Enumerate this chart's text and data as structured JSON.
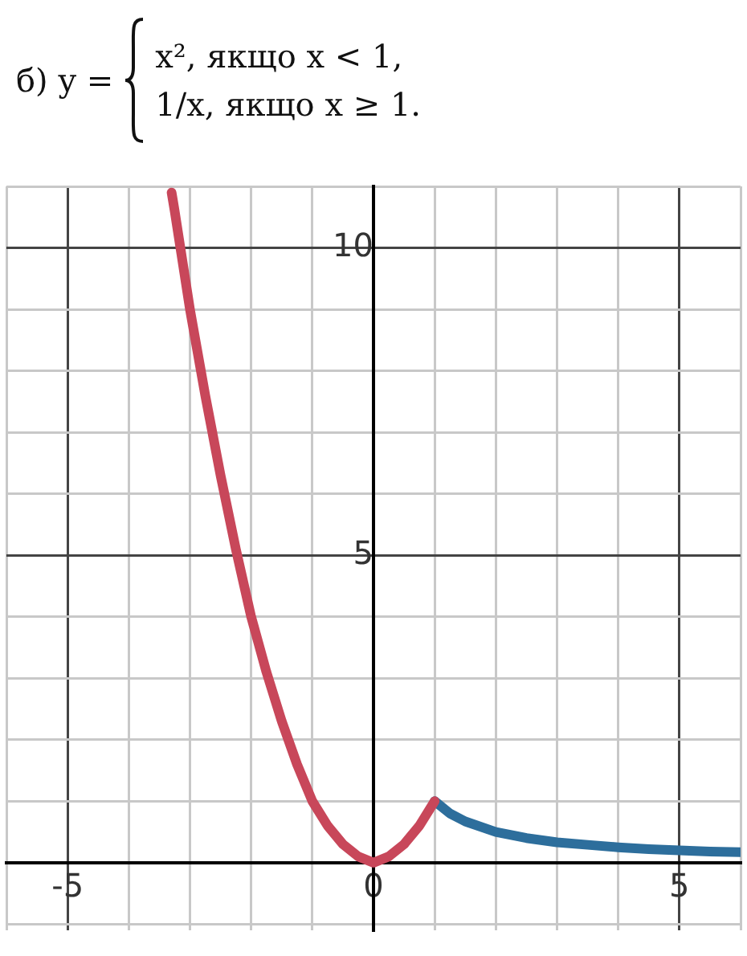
{
  "chart_data": {
    "type": "line",
    "title": "б) y =",
    "annotations": [
      "x², якщо x < 1,",
      "1/x, якщо x ≥ 1."
    ],
    "series": [
      {
        "color": "#c8475a",
        "x": [
          -3.3,
          -3.25,
          -3,
          -2.75,
          -2.5,
          -2.25,
          -2,
          -1.75,
          -1.5,
          -1.25,
          -1,
          -0.75,
          -0.5,
          -0.25,
          0,
          0.25,
          0.5,
          0.75,
          1
        ],
        "values": [
          10.9,
          10.6,
          9,
          7.6,
          6.3,
          5.1,
          4,
          3.1,
          2.3,
          1.6,
          1,
          0.6,
          0.3,
          0.1,
          0,
          0.1,
          0.3,
          0.6,
          1
        ]
      },
      {
        "color": "#2d6e9c",
        "x": [
          1,
          1.25,
          1.5,
          2,
          2.5,
          3,
          3.5,
          4,
          4.5,
          5,
          5.5,
          6
        ],
        "values": [
          1,
          0.8,
          0.67,
          0.5,
          0.4,
          0.33,
          0.29,
          0.25,
          0.22,
          0.2,
          0.18,
          0.17
        ]
      }
    ],
    "xlim": [
      -6,
      6
    ],
    "ylim": [
      -1.1,
      11
    ],
    "xticks": [
      {
        "value": -6,
        "label": null
      },
      {
        "value": -5,
        "label": "-5"
      },
      {
        "value": -4,
        "label": null
      },
      {
        "value": -3,
        "label": null
      },
      {
        "value": -2,
        "label": null
      },
      {
        "value": -1,
        "label": null
      },
      {
        "value": 0,
        "label": "0"
      },
      {
        "value": 1,
        "label": null
      },
      {
        "value": 2,
        "label": null
      },
      {
        "value": 3,
        "label": null
      },
      {
        "value": 4,
        "label": null
      },
      {
        "value": 5,
        "label": "5"
      },
      {
        "value": 6,
        "label": null
      }
    ],
    "yticks": [
      {
        "value": -1,
        "label": null
      },
      {
        "value": 0,
        "label": null
      },
      {
        "value": 1,
        "label": null
      },
      {
        "value": 2,
        "label": null
      },
      {
        "value": 3,
        "label": null
      },
      {
        "value": 4,
        "label": null
      },
      {
        "value": 5,
        "label": "5"
      },
      {
        "value": 6,
        "label": null
      },
      {
        "value": 7,
        "label": null
      },
      {
        "value": 8,
        "label": null
      },
      {
        "value": 9,
        "label": null
      },
      {
        "value": 10,
        "label": "10"
      },
      {
        "value": 11,
        "label": null
      }
    ],
    "grid": true,
    "marker": "none",
    "line_style": "solid"
  }
}
